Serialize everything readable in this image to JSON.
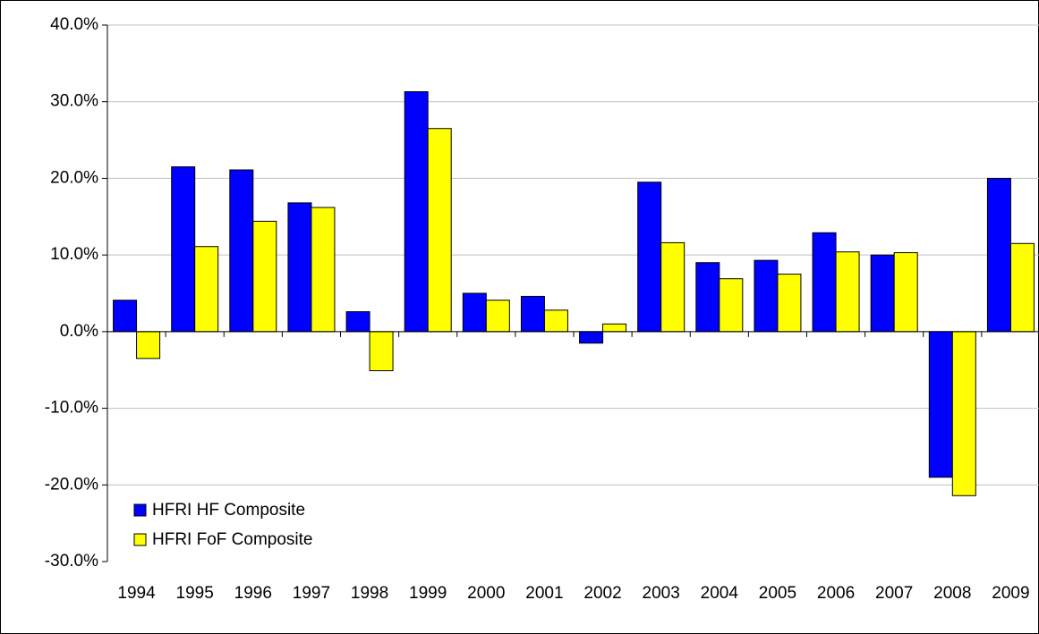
{
  "chart_data": {
    "type": "bar",
    "categories": [
      "1994",
      "1995",
      "1996",
      "1997",
      "1998",
      "1999",
      "2000",
      "2001",
      "2002",
      "2003",
      "2004",
      "2005",
      "2006",
      "2007",
      "2008",
      "2009"
    ],
    "series": [
      {
        "name": "HFRI HF Composite",
        "color": "#0000ff",
        "values": [
          4.1,
          21.5,
          21.1,
          16.8,
          2.6,
          31.3,
          5.0,
          4.6,
          -1.5,
          19.5,
          9.0,
          9.3,
          12.9,
          10.0,
          -19.0,
          20.0
        ]
      },
      {
        "name": "HFRI FoF Composite",
        "color": "#ffff00",
        "values": [
          -3.5,
          11.1,
          14.4,
          16.2,
          -5.1,
          26.5,
          4.1,
          2.8,
          1.0,
          11.6,
          6.9,
          7.5,
          10.4,
          10.3,
          -21.4,
          11.5
        ]
      }
    ],
    "ylim": [
      -30,
      40
    ],
    "yticks": [
      {
        "value": -30,
        "label": "-30.0%"
      },
      {
        "value": -20,
        "label": "-20.0%"
      },
      {
        "value": -10,
        "label": "-10.0%"
      },
      {
        "value": 0,
        "label": "0.0%"
      },
      {
        "value": 10,
        "label": "10.0%"
      },
      {
        "value": 20,
        "label": "20.0%"
      },
      {
        "value": 30,
        "label": "30.0%"
      },
      {
        "value": 40,
        "label": "40.0%"
      }
    ],
    "grid": true
  }
}
